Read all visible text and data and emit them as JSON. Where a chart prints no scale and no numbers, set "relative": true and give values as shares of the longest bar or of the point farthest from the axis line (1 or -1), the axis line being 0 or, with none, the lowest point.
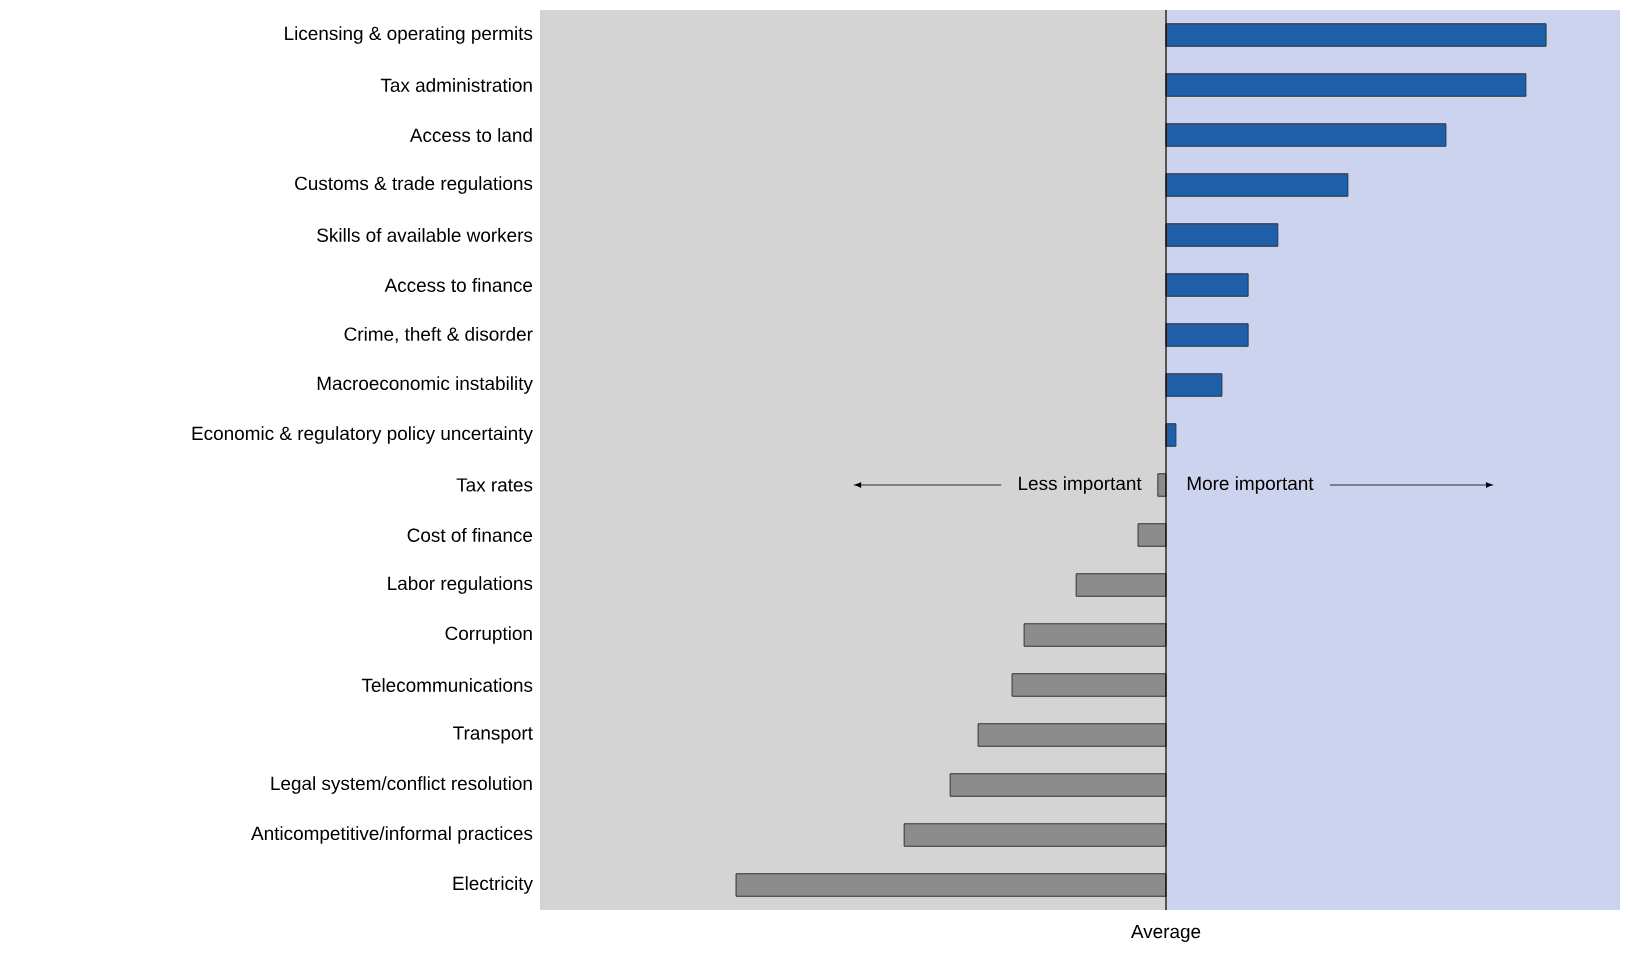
{
  "chart_data": {
    "type": "bar",
    "orientation": "horizontal",
    "relative": true,
    "xlabel": "Average",
    "categories": [
      "Licensing & operating permits",
      "Tax administration",
      "Access to land",
      "Customs & trade regulations",
      "Skills of available workers",
      "Access to finance",
      "Crime, theft & disorder",
      "Macroeconomic instability",
      "Economic & regulatory policy uncertainty",
      "Tax rates",
      "Cost of finance",
      "Labor regulations",
      "Corruption",
      "Telecommunications",
      "Transport",
      "Legal system/conflict resolution",
      "Anticompetitive/informal practices",
      "Electricity"
    ],
    "values": [
      0.884,
      0.837,
      0.651,
      0.423,
      0.26,
      0.191,
      0.191,
      0.13,
      0.023,
      -0.019,
      -0.065,
      -0.209,
      -0.33,
      -0.358,
      -0.437,
      -0.502,
      -0.609,
      -1
    ],
    "colors": [
      "#1f5fa8",
      "#1f5fa8",
      "#1f5fa8",
      "#1f5fa8",
      "#1f5fa8",
      "#1f5fa8",
      "#1f5fa8",
      "#1f5fa8",
      "#1f5fa8",
      "#8c8c8c",
      "#8c8c8c",
      "#8c8c8c",
      "#8c8c8c",
      "#8c8c8c",
      "#8c8c8c",
      "#8c8c8c",
      "#8c8c8c",
      "#8c8c8c"
    ],
    "bands": [
      {
        "axis": "x",
        "from": -1.456,
        "to": 0,
        "color": "#d4d4d4"
      },
      {
        "axis": "x",
        "from": 0,
        "to": 1.056,
        "color": "#ccd3ee"
      }
    ],
    "annotations": [
      "Less important",
      "More important"
    ],
    "tick_labels": "y"
  }
}
